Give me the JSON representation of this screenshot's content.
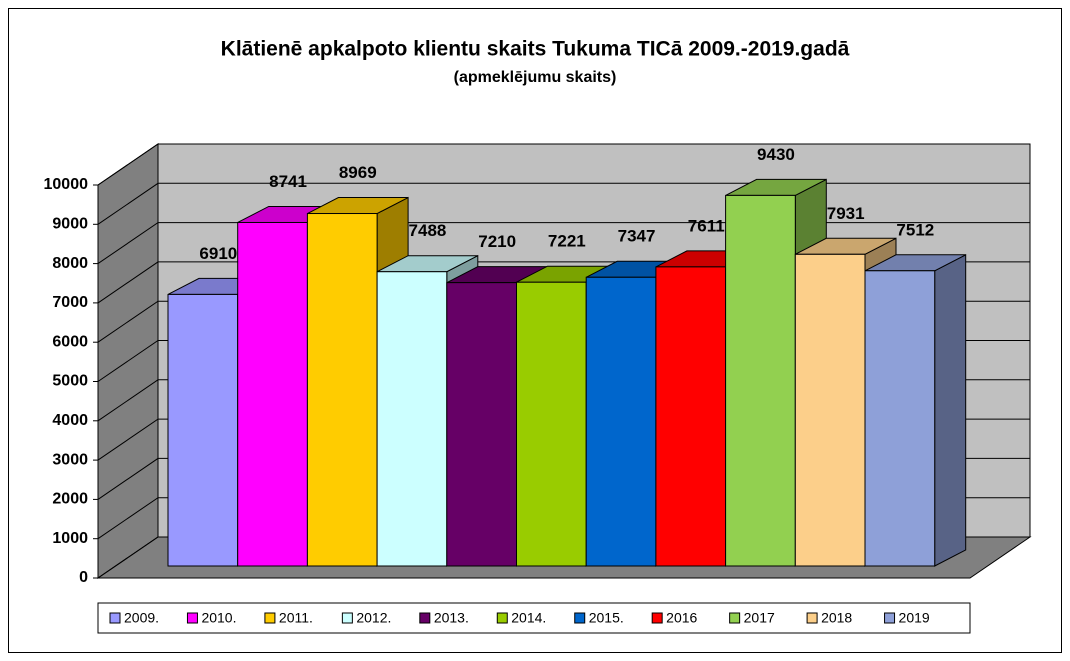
{
  "chart_data": {
    "type": "bar3d",
    "title": "Klātienē apkalpoto klientu skaits Tukuma TICā 2009.-2019.gadā",
    "subtitle": "(apmeklējumu skaits)",
    "categories": [
      "2009.",
      "2010.",
      "2011.",
      "2012.",
      "2013.",
      "2014.",
      "2015.",
      "2016",
      "2017",
      "2018",
      "2019"
    ],
    "values": [
      6910,
      8741,
      8969,
      7488,
      7210,
      7221,
      7347,
      7611,
      9430,
      7931,
      7512
    ],
    "colors": [
      "#9999ff",
      "#ff00ff",
      "#ffcc00",
      "#ccffff",
      "#660066",
      "#99cc00",
      "#0066cc",
      "#ff0000",
      "#92d050",
      "#fccf8a",
      "#8ea0d8"
    ],
    "ylim": [
      0,
      10000
    ],
    "yticks": [
      0,
      1000,
      2000,
      3000,
      4000,
      5000,
      6000,
      7000,
      8000,
      9000,
      10000
    ],
    "grid": true,
    "legend": "bottom"
  }
}
